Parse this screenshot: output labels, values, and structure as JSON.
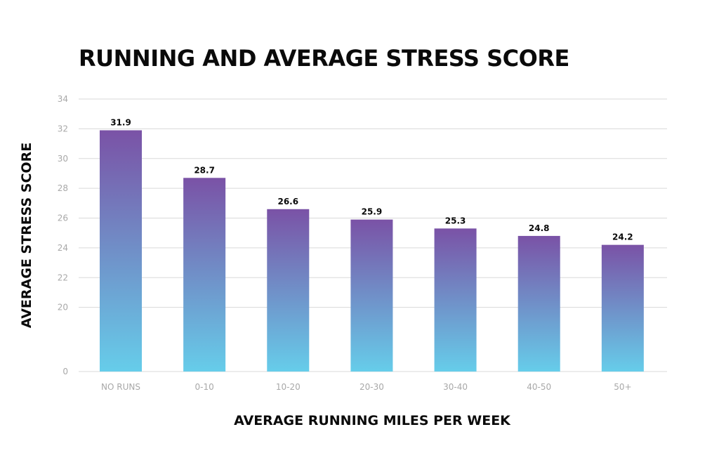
{
  "colors": {
    "bar_top": "#7a52a6",
    "bar_bottom": "#66cdea",
    "gridline": "#d9d9d9",
    "tick_text": "#a8a8a8",
    "label_text": "#0a0a0a"
  },
  "chart_data": {
    "type": "bar",
    "title": "RUNNING AND AVERAGE STRESS SCORE",
    "xlabel": "AVERAGE RUNNING MILES PER WEEK",
    "ylabel": "AVERAGE STRESS SCORE",
    "categories": [
      "NO RUNS",
      "0-10",
      "10-20",
      "20-30",
      "30-40",
      "40-50",
      "50+"
    ],
    "values": [
      31.9,
      28.7,
      26.6,
      25.9,
      25.3,
      24.8,
      24.2
    ],
    "value_labels": [
      "31.9",
      "28.7",
      "26.6",
      "25.9",
      "25.3",
      "24.8",
      "24.2"
    ],
    "ylim": [
      18,
      34
    ],
    "y_ticks": [
      34,
      32,
      30,
      28,
      26,
      24,
      22,
      20
    ],
    "y_baseline_label": "0",
    "grid": true,
    "legend": "none"
  }
}
